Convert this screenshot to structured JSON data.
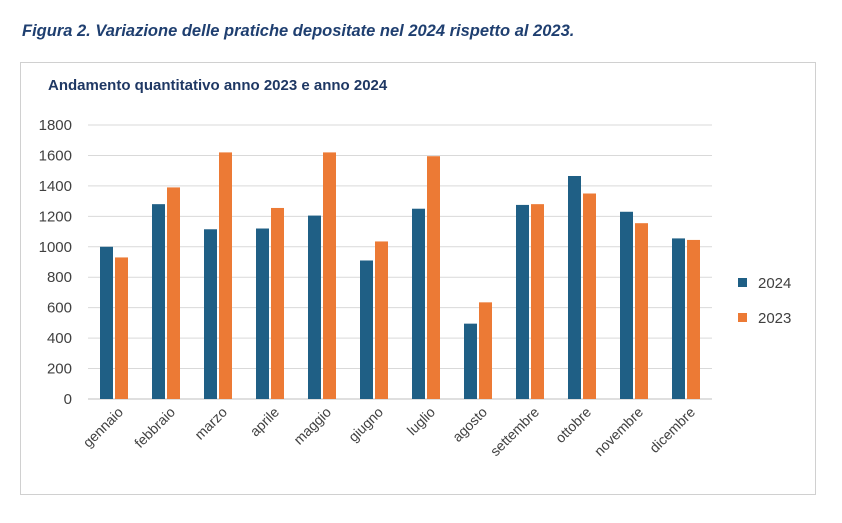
{
  "caption": "Figura 2. Variazione delle pratiche depositate nel 2024 rispetto al 2023.",
  "chart_data": {
    "type": "bar",
    "title": "Andamento quantitativo anno 2023 e anno 2024",
    "xlabel": "",
    "ylabel": "",
    "ylim": [
      0,
      1800
    ],
    "yticks": [
      0,
      200,
      400,
      600,
      800,
      1000,
      1200,
      1400,
      1600,
      1800
    ],
    "grid": true,
    "legend_position": "right",
    "categories": [
      "gennaio",
      "febbraio",
      "marzo",
      "aprile",
      "maggio",
      "giugno",
      "luglio",
      "agosto",
      "settembre",
      "ottobre",
      "novembre",
      "dicembre"
    ],
    "series": [
      {
        "name": "2024",
        "color": "#1f5f85",
        "values": [
          1000,
          1280,
          1115,
          1120,
          1205,
          910,
          1250,
          495,
          1275,
          1465,
          1230,
          1055
        ]
      },
      {
        "name": "2023",
        "color": "#ec7a35",
        "values": [
          930,
          1390,
          1620,
          1255,
          1620,
          1035,
          1595,
          635,
          1280,
          1350,
          1155,
          1045
        ]
      }
    ]
  }
}
